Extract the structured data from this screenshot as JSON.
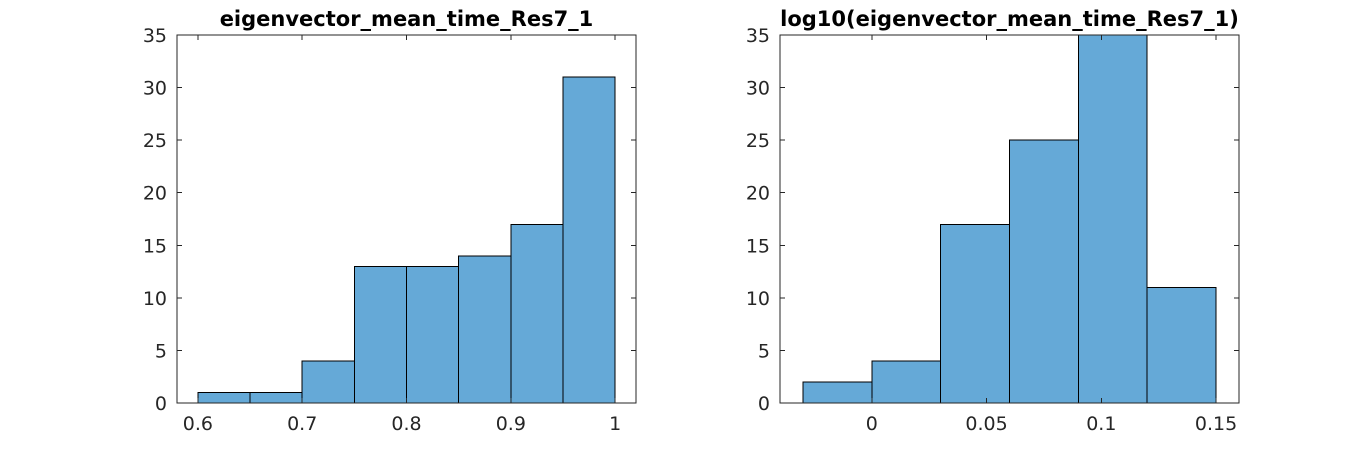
{
  "chart_data": [
    {
      "type": "bar",
      "title": "eigenvector_mean_time_Res7_1",
      "xlabel": "",
      "ylabel": "",
      "bin_edges": [
        0.6,
        0.65,
        0.7,
        0.75,
        0.8,
        0.85,
        0.9,
        0.95,
        1.0
      ],
      "values": [
        1,
        1,
        4,
        13,
        13,
        14,
        17,
        31
      ],
      "xlim": [
        0.58,
        1.02
      ],
      "ylim": [
        0,
        35
      ],
      "xticks": [
        0.6,
        0.7,
        0.8,
        0.9,
        1
      ],
      "xtick_labels": [
        "0.6",
        "0.7",
        "0.8",
        "0.9",
        "1"
      ],
      "yticks": [
        0,
        5,
        10,
        15,
        20,
        25,
        30,
        35
      ],
      "ytick_labels": [
        "0",
        "5",
        "10",
        "15",
        "20",
        "25",
        "30",
        "35"
      ],
      "bar_color": "#65a9d7",
      "grid": false
    },
    {
      "type": "bar",
      "title": "log10(eigenvector_mean_time_Res7_1)",
      "xlabel": "",
      "ylabel": "",
      "bin_edges": [
        -0.03,
        0.0,
        0.03,
        0.06,
        0.09,
        0.12,
        0.15
      ],
      "values": [
        2,
        4,
        17,
        25,
        35,
        11
      ],
      "xlim": [
        -0.04,
        0.16
      ],
      "ylim": [
        0,
        35
      ],
      "xticks": [
        0,
        0.05,
        0.1,
        0.15
      ],
      "xtick_labels": [
        "0",
        "0.05",
        "0.1",
        "0.15"
      ],
      "yticks": [
        0,
        5,
        10,
        15,
        20,
        25,
        30,
        35
      ],
      "ytick_labels": [
        "0",
        "5",
        "10",
        "15",
        "20",
        "25",
        "30",
        "35"
      ],
      "bar_color": "#65a9d7",
      "grid": false
    }
  ]
}
